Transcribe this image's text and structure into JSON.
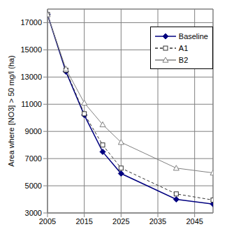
{
  "chart_data": {
    "type": "line",
    "y_label": "Area where [NO3] > 50 mg/l  (ha)",
    "x": [
      2005,
      2010,
      2015,
      2020,
      2025,
      2040,
      2050
    ],
    "series": [
      {
        "name": "Baseline",
        "color": "#000080",
        "marker": "diamond",
        "line_style": "solid",
        "values": [
          17600,
          13400,
          10200,
          7500,
          5900,
          4000,
          3650
        ]
      },
      {
        "name": "A1",
        "color": "#333333",
        "marker": "square",
        "line_style": "dashed",
        "values": [
          17600,
          13500,
          10300,
          8000,
          6300,
          4400,
          3950
        ]
      },
      {
        "name": "B2",
        "color": "#808080",
        "marker": "triangle",
        "line_style": "solid",
        "values": [
          17600,
          13600,
          11100,
          9500,
          8200,
          6300,
          5950
        ]
      }
    ],
    "xlim": [
      2005,
      2050
    ],
    "xticks": [
      2005,
      2015,
      2025,
      2035,
      2045
    ],
    "ylim": [
      3000,
      18000
    ],
    "yticks": [
      3000,
      5000,
      7000,
      9000,
      11000,
      13000,
      15000,
      17000
    ],
    "grid": true,
    "legend": "upper right"
  }
}
